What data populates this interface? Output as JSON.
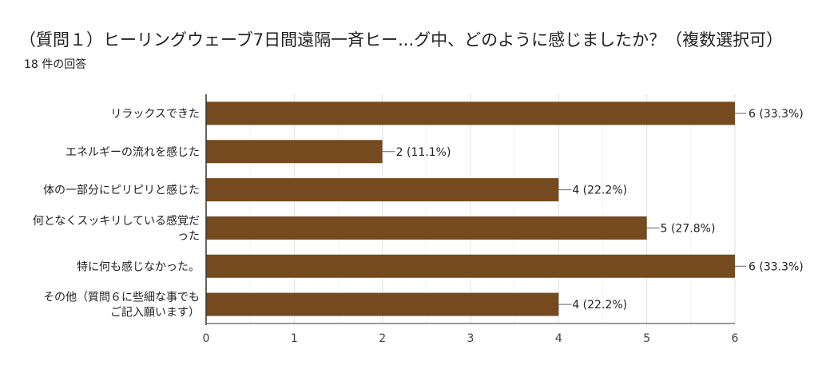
{
  "header": {
    "title": "（質問１）ヒーリングウェーブ7日間遠隔一斉ヒー...グ中、どのように感じましたか？（複数選択可）",
    "response_count": "18 件の回答"
  },
  "chart_data": {
    "type": "bar",
    "orientation": "horizontal",
    "categories": [
      [
        "リラックスできた"
      ],
      [
        "エネルギーの流れを感じた"
      ],
      [
        "体の一部分にピリピリと感じた"
      ],
      [
        "何となくスッキリしている感覚だ",
        "った"
      ],
      [
        "特に何も感じなかった。"
      ],
      [
        "その他（質問６に些細な事でも",
        "ご記入願います）"
      ]
    ],
    "values": [
      6,
      2,
      4,
      5,
      6,
      4
    ],
    "labels": [
      "6 (33.3%)",
      "2 (11.1%)",
      "4 (22.2%)",
      "5 (27.8%)",
      "6 (33.3%)",
      "4 (22.2%)"
    ],
    "xlim": [
      0,
      6
    ],
    "xticks": [
      "0",
      "1",
      "2",
      "3",
      "4",
      "5",
      "6"
    ],
    "bar_color": "#744a1e",
    "grid": true
  }
}
